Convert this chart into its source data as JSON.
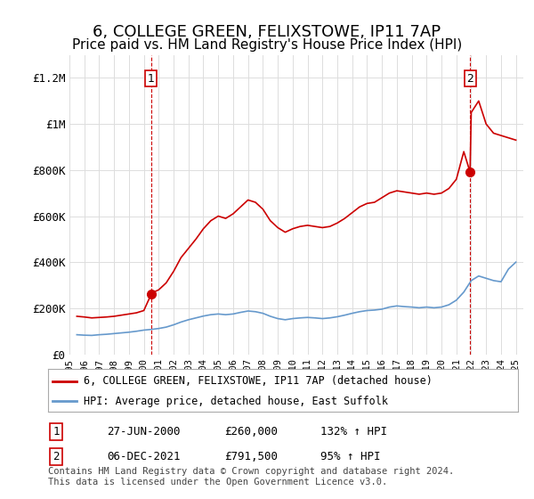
{
  "title": "6, COLLEGE GREEN, FELIXSTOWE, IP11 7AP",
  "subtitle": "Price paid vs. HM Land Registry's House Price Index (HPI)",
  "title_fontsize": 13,
  "subtitle_fontsize": 11,
  "ylabel_ticks": [
    "£0",
    "£200K",
    "£400K",
    "£600K",
    "£800K",
    "£1M",
    "£1.2M"
  ],
  "ytick_values": [
    0,
    200000,
    400000,
    600000,
    800000,
    1000000,
    1200000
  ],
  "ylim": [
    0,
    1300000
  ],
  "xlim_start": 1995.5,
  "xlim_end": 2025.5,
  "xtick_years": [
    1995,
    1996,
    1997,
    1998,
    1999,
    2000,
    2001,
    2002,
    2003,
    2004,
    2005,
    2006,
    2007,
    2008,
    2009,
    2010,
    2011,
    2012,
    2013,
    2014,
    2015,
    2016,
    2017,
    2018,
    2019,
    2020,
    2021,
    2022,
    2023,
    2024,
    2025
  ],
  "red_line_color": "#cc0000",
  "blue_line_color": "#6699cc",
  "marker1_color": "#cc0000",
  "marker2_color": "#cc0000",
  "dashed_line_color": "#cc0000",
  "background_color": "#ffffff",
  "grid_color": "#dddddd",
  "legend_label_red": "6, COLLEGE GREEN, FELIXSTOWE, IP11 7AP (detached house)",
  "legend_label_blue": "HPI: Average price, detached house, East Suffolk",
  "sale1_label": "1",
  "sale2_label": "2",
  "sale1_date": "27-JUN-2000",
  "sale1_price": "£260,000",
  "sale1_hpi": "132% ↑ HPI",
  "sale2_date": "06-DEC-2021",
  "sale2_price": "£791,500",
  "sale2_hpi": "95% ↑ HPI",
  "sale1_x": 2000.49,
  "sale1_y": 260000,
  "sale2_x": 2021.92,
  "sale2_y": 791500,
  "copyright_text": "Contains HM Land Registry data © Crown copyright and database right 2024.\nThis data is licensed under the Open Government Licence v3.0.",
  "hpi_red_x": [
    1995.5,
    1996.0,
    1996.5,
    1997.0,
    1997.5,
    1998.0,
    1998.5,
    1999.0,
    1999.5,
    2000.0,
    2000.49,
    2000.5,
    2001.0,
    2001.5,
    2002.0,
    2002.5,
    2003.0,
    2003.5,
    2004.0,
    2004.5,
    2005.0,
    2005.5,
    2006.0,
    2006.5,
    2007.0,
    2007.5,
    2008.0,
    2008.5,
    2009.0,
    2009.5,
    2010.0,
    2010.5,
    2011.0,
    2011.5,
    2012.0,
    2012.5,
    2013.0,
    2013.5,
    2014.0,
    2014.5,
    2015.0,
    2015.5,
    2016.0,
    2016.5,
    2017.0,
    2017.5,
    2018.0,
    2018.5,
    2019.0,
    2019.5,
    2020.0,
    2020.5,
    2021.0,
    2021.5,
    2021.92,
    2022.0,
    2022.5,
    2023.0,
    2023.5,
    2024.0,
    2024.5,
    2025.0
  ],
  "hpi_red_y": [
    165000,
    162000,
    158000,
    160000,
    162000,
    165000,
    170000,
    175000,
    180000,
    190000,
    260000,
    265000,
    280000,
    310000,
    360000,
    420000,
    460000,
    500000,
    545000,
    580000,
    600000,
    590000,
    610000,
    640000,
    670000,
    660000,
    630000,
    580000,
    550000,
    530000,
    545000,
    555000,
    560000,
    555000,
    550000,
    555000,
    570000,
    590000,
    615000,
    640000,
    655000,
    660000,
    680000,
    700000,
    710000,
    705000,
    700000,
    695000,
    700000,
    695000,
    700000,
    720000,
    760000,
    880000,
    791500,
    1050000,
    1100000,
    1000000,
    960000,
    950000,
    940000,
    930000
  ],
  "hpi_blue_x": [
    1995.5,
    1996.0,
    1996.5,
    1997.0,
    1997.5,
    1998.0,
    1998.5,
    1999.0,
    1999.5,
    2000.0,
    2000.5,
    2001.0,
    2001.5,
    2002.0,
    2002.5,
    2003.0,
    2003.5,
    2004.0,
    2004.5,
    2005.0,
    2005.5,
    2006.0,
    2006.5,
    2007.0,
    2007.5,
    2008.0,
    2008.5,
    2009.0,
    2009.5,
    2010.0,
    2010.5,
    2011.0,
    2011.5,
    2012.0,
    2012.5,
    2013.0,
    2013.5,
    2014.0,
    2014.5,
    2015.0,
    2015.5,
    2016.0,
    2016.5,
    2017.0,
    2017.5,
    2018.0,
    2018.5,
    2019.0,
    2019.5,
    2020.0,
    2020.5,
    2021.0,
    2021.5,
    2022.0,
    2022.5,
    2023.0,
    2023.5,
    2024.0,
    2024.5,
    2025.0
  ],
  "hpi_blue_y": [
    85000,
    83000,
    82000,
    85000,
    87000,
    90000,
    93000,
    96000,
    100000,
    105000,
    108000,
    112000,
    118000,
    128000,
    140000,
    150000,
    158000,
    166000,
    172000,
    175000,
    172000,
    175000,
    182000,
    188000,
    185000,
    178000,
    165000,
    155000,
    150000,
    155000,
    158000,
    160000,
    158000,
    155000,
    158000,
    163000,
    170000,
    178000,
    185000,
    190000,
    192000,
    196000,
    205000,
    210000,
    207000,
    205000,
    202000,
    205000,
    202000,
    205000,
    215000,
    235000,
    270000,
    320000,
    340000,
    330000,
    320000,
    315000,
    370000,
    400000
  ]
}
